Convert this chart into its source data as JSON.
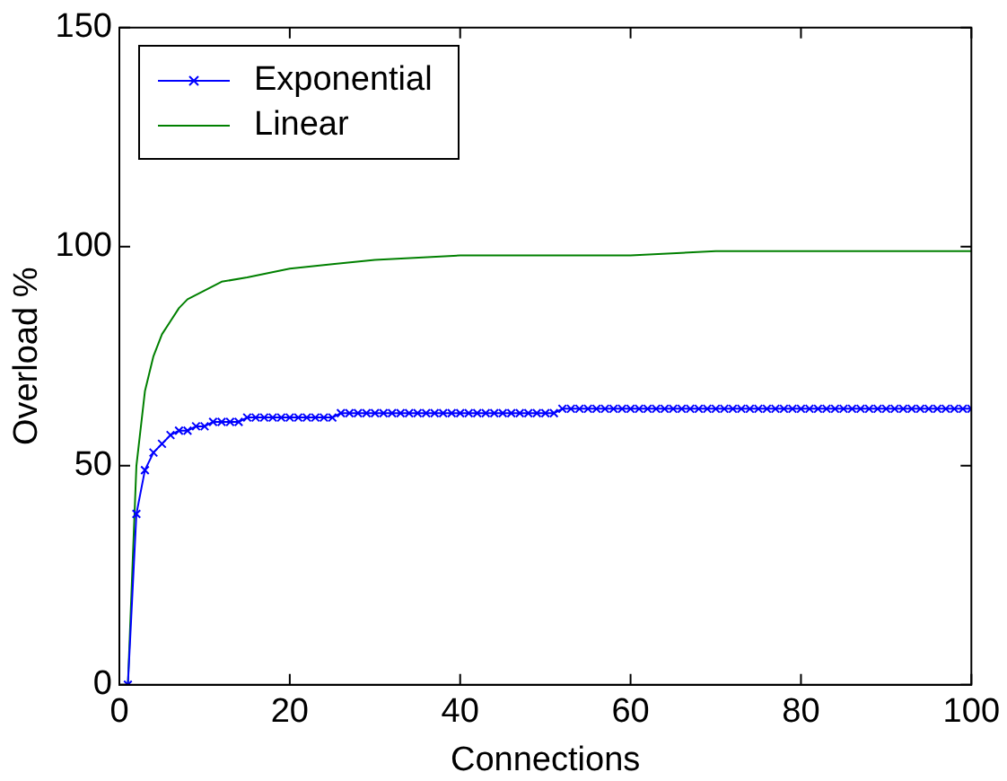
{
  "chart_data": {
    "type": "line",
    "xlabel": "Connections",
    "ylabel": "Overload %",
    "xlim": [
      0,
      100
    ],
    "ylim": [
      0,
      150
    ],
    "xticks": [
      0,
      20,
      40,
      60,
      80,
      100
    ],
    "yticks": [
      0,
      50,
      100,
      150
    ],
    "legend": "top left",
    "grid": false,
    "series": [
      {
        "name": "Exponential",
        "color": "#0000ff",
        "marker": "cross",
        "x": [
          1,
          2,
          3,
          4,
          5,
          6,
          7,
          8,
          9,
          10,
          11,
          12,
          13,
          14,
          15,
          16,
          17,
          18,
          19,
          20,
          21,
          22,
          23,
          24,
          25,
          26,
          27,
          28,
          29,
          30,
          31,
          32,
          33,
          34,
          35,
          36,
          37,
          38,
          39,
          40,
          41,
          42,
          43,
          44,
          45,
          46,
          47,
          48,
          49,
          50,
          51,
          52,
          53,
          54,
          55,
          56,
          57,
          58,
          59,
          60,
          61,
          62,
          63,
          64,
          65,
          66,
          67,
          68,
          69,
          70,
          71,
          72,
          73,
          74,
          75,
          76,
          77,
          78,
          79,
          80,
          81,
          82,
          83,
          84,
          85,
          86,
          87,
          88,
          89,
          90,
          91,
          92,
          93,
          94,
          95,
          96,
          97,
          98,
          99,
          100
        ],
        "values": [
          0,
          39,
          49,
          53,
          55,
          57,
          58,
          58,
          59,
          59,
          60,
          60,
          60,
          60,
          61,
          61,
          61,
          61,
          61,
          61,
          61,
          61,
          61,
          61,
          61,
          62,
          62,
          62,
          62,
          62,
          62,
          62,
          62,
          62,
          62,
          62,
          62,
          62,
          62,
          62,
          62,
          62,
          62,
          62,
          62,
          62,
          62,
          62,
          62,
          62,
          62,
          63,
          63,
          63,
          63,
          63,
          63,
          63,
          63,
          63,
          63,
          63,
          63,
          63,
          63,
          63,
          63,
          63,
          63,
          63,
          63,
          63,
          63,
          63,
          63,
          63,
          63,
          63,
          63,
          63,
          63,
          63,
          63,
          63,
          63,
          63,
          63,
          63,
          63,
          63,
          63,
          63,
          63,
          63,
          63,
          63,
          63,
          63,
          63,
          63
        ]
      },
      {
        "name": "Linear",
        "color": "#008000",
        "marker": "none",
        "x": [
          1,
          2,
          3,
          4,
          5,
          6,
          7,
          8,
          10,
          12,
          15,
          20,
          25,
          30,
          40,
          50,
          60,
          70,
          80,
          100
        ],
        "values": [
          0,
          50,
          67,
          75,
          80,
          83,
          86,
          88,
          90,
          92,
          93,
          95,
          96,
          97,
          98,
          98,
          98,
          99,
          99,
          99
        ]
      }
    ]
  }
}
